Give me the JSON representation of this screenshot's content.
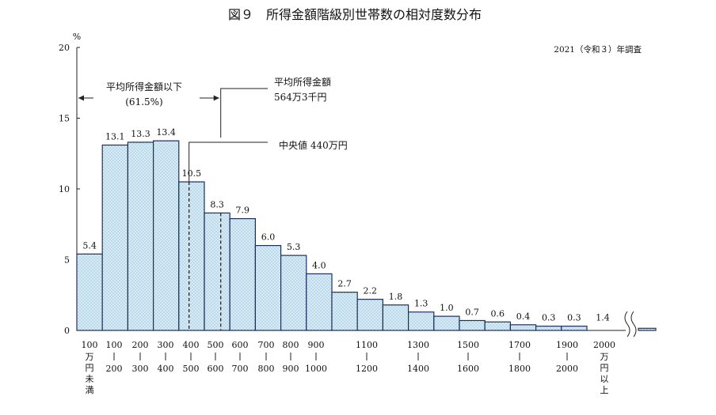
{
  "chart_data": {
    "type": "bar",
    "title": "図９　所得金額階級別世帯数の相対度数分布",
    "subtitle": "2021（令和３）年調査",
    "ylabel": "%",
    "ylim": [
      0,
      20
    ],
    "yticks": [
      "0",
      "5",
      "10",
      "15",
      "20"
    ],
    "grid": false,
    "categories": [
      "100万円未満",
      "100～200",
      "200～300",
      "300～400",
      "400～500",
      "500～600",
      "600～700",
      "700～800",
      "800～900",
      "900～1000",
      "1000～1100",
      "1100～1200",
      "1200～1300",
      "1300～1400",
      "1400～1500",
      "1500～1600",
      "1600～1700",
      "1700～1800",
      "1800～1900",
      "1900～2000",
      "2000万円以上"
    ],
    "values": [
      5.4,
      13.1,
      13.3,
      13.4,
      10.5,
      8.3,
      7.9,
      6.0,
      5.3,
      4.0,
      2.7,
      2.2,
      1.8,
      1.3,
      1.0,
      0.7,
      0.6,
      0.4,
      0.3,
      0.3,
      1.4
    ],
    "value_labels": [
      "5.4",
      "13.1",
      "13.3",
      "13.4",
      "10.5",
      "8.3",
      "7.9",
      "6.0",
      "5.3",
      "4.0",
      "2.7",
      "2.2",
      "1.8",
      "1.3",
      "1.0",
      "0.7",
      "0.6",
      "0.4",
      "0.3",
      "0.3",
      "1.4"
    ],
    "x_tick_labels": [
      {
        "top": "100",
        "bottom": "万円未満"
      },
      {
        "top": "100",
        "bottom": "200"
      },
      {
        "top": "200",
        "bottom": "300"
      },
      {
        "top": "300",
        "bottom": "400"
      },
      {
        "top": "400",
        "bottom": "500"
      },
      {
        "top": "500",
        "bottom": "600"
      },
      {
        "top": "600",
        "bottom": "700"
      },
      {
        "top": "700",
        "bottom": "800"
      },
      {
        "top": "800",
        "bottom": "900"
      },
      {
        "top": "900",
        "bottom": "1000"
      },
      {
        "top": "1100",
        "bottom": "1200"
      },
      {
        "top": "1300",
        "bottom": "1400"
      },
      {
        "top": "1500",
        "bottom": "1600"
      },
      {
        "top": "1700",
        "bottom": "1800"
      },
      {
        "top": "1900",
        "bottom": "2000"
      },
      {
        "top": "2000",
        "bottom": "万円以上"
      }
    ],
    "annotations": {
      "below_mean_label": "平均所得金額以下",
      "below_mean_pct": "(61.5%)",
      "mean_label": "平均所得金額",
      "mean_value": "564万3千円",
      "median_label": "中央値 440万円"
    },
    "mean_value_manen": 564.3,
    "median_value_manen": 440,
    "colors": {
      "bar_fill": "#cfe6f3",
      "bar_stroke": "#1f2f5c",
      "dot": "#7fb0cf"
    }
  }
}
